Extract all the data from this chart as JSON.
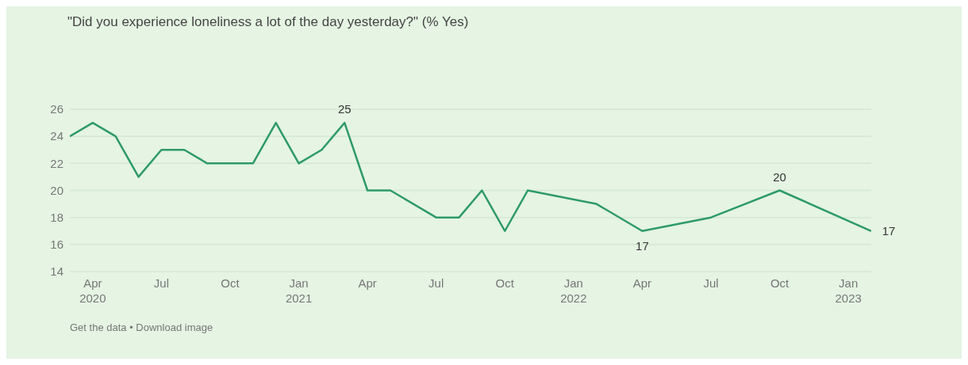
{
  "chart_data": {
    "type": "line",
    "title": "\"Did you experience loneliness a lot of the day yesterday?\" (% Yes)",
    "x": [
      "2020-03",
      "2020-04",
      "2020-05",
      "2020-06",
      "2020-07",
      "2020-08",
      "2020-09",
      "2020-10",
      "2020-11",
      "2020-12",
      "2021-01",
      "2021-02",
      "2021-03",
      "2021-04",
      "2021-05",
      "2021-07",
      "2021-08",
      "2021-09",
      "2021-10",
      "2021-11",
      "2022-02",
      "2022-04",
      "2022-07",
      "2022-10",
      "2023-02"
    ],
    "series": [
      {
        "color": "#2e9a68",
        "values": [
          24,
          25,
          24,
          21,
          23,
          23,
          22,
          22,
          22,
          25,
          22,
          23,
          25,
          20,
          20,
          18,
          18,
          20,
          17,
          20,
          19,
          17,
          18,
          20,
          17
        ],
        "value_labels": [
          null,
          null,
          null,
          null,
          null,
          null,
          null,
          null,
          null,
          null,
          null,
          null,
          "25",
          null,
          null,
          null,
          null,
          null,
          null,
          null,
          null,
          "17",
          null,
          "20",
          "17"
        ]
      }
    ],
    "xlim": [
      "2020-03",
      "2023-02"
    ],
    "xticks": [
      {
        "value": "2020-04",
        "label": "Apr 2020"
      },
      {
        "value": "2020-07",
        "label": "Jul"
      },
      {
        "value": "2020-10",
        "label": "Oct"
      },
      {
        "value": "2021-01",
        "label": "Jan 2021"
      },
      {
        "value": "2021-04",
        "label": "Apr"
      },
      {
        "value": "2021-07",
        "label": "Jul"
      },
      {
        "value": "2021-10",
        "label": "Oct"
      },
      {
        "value": "2022-01",
        "label": "Jan 2022"
      },
      {
        "value": "2022-04",
        "label": "Apr"
      },
      {
        "value": "2022-07",
        "label": "Jul"
      },
      {
        "value": "2022-10",
        "label": "Oct"
      },
      {
        "value": "2023-01",
        "label": "Jan 2023"
      }
    ],
    "ylim": [
      14,
      26
    ],
    "yticks": [
      14,
      16,
      18,
      20,
      22,
      24,
      26
    ],
    "grid": "y",
    "marker": "none",
    "line_style": "solid",
    "annotations": [
      "Get the data • Download image"
    ]
  }
}
